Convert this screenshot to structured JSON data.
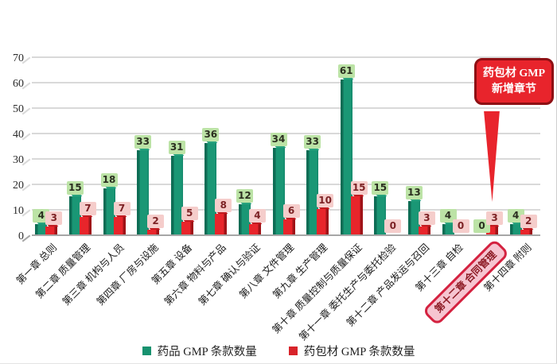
{
  "chart_data": {
    "type": "bar",
    "title": "",
    "categories": [
      "第一章 总则",
      "第二章 质量管理",
      "第三章 机构与人员",
      "第四章 厂房与设施",
      "第五章 设备",
      "第六章 物料与产品",
      "第七章 确认与验证",
      "第八章 文件管理",
      "第九章 生产管理",
      "第十章 质量控制与质量保证",
      "第十一章 委托生产与委托检验",
      "第十二章 产品发运与召回",
      "第十三章 自检",
      "第十二章 合同管理",
      "第十四章 附则"
    ],
    "series": [
      {
        "name": "药品 GMP 条款数量",
        "color": "#17926f",
        "values": [
          4,
          15,
          18,
          33,
          31,
          36,
          12,
          34,
          33,
          61,
          15,
          13,
          4,
          0,
          4
        ]
      },
      {
        "name": "药包材 GMP 条款数量",
        "color": "#e2242b",
        "values": [
          3,
          7,
          7,
          2,
          5,
          8,
          4,
          6,
          10,
          15,
          0,
          3,
          0,
          3,
          2
        ]
      }
    ],
    "ylim": [
      0,
      70
    ],
    "yticks": [
      0,
      10,
      20,
      30,
      40,
      50,
      60,
      70
    ],
    "grid": "horizontal",
    "legend_position": "bottom",
    "highlighted_category_index": 13,
    "annotation": {
      "text": "药包材 GMP 新增章节",
      "target_category_index": 13,
      "target_series": "药包材 GMP 条款数量"
    }
  },
  "colors": {
    "green_bar": "#17926f",
    "green_bar_dark": "#0e6d55",
    "green_label_bg": "#bce3a6",
    "red_bar": "#e2242b",
    "red_bar_dark": "#9f1318",
    "red_label_bg": "#f5cdcb",
    "callout_bg": "#e8242c",
    "callout_border": "#8e1014",
    "highlight_bg": "#f6c5d1",
    "highlight_border": "#d42240",
    "gridline": "#d9d9d9",
    "axis_line": "#a6a6a6"
  }
}
